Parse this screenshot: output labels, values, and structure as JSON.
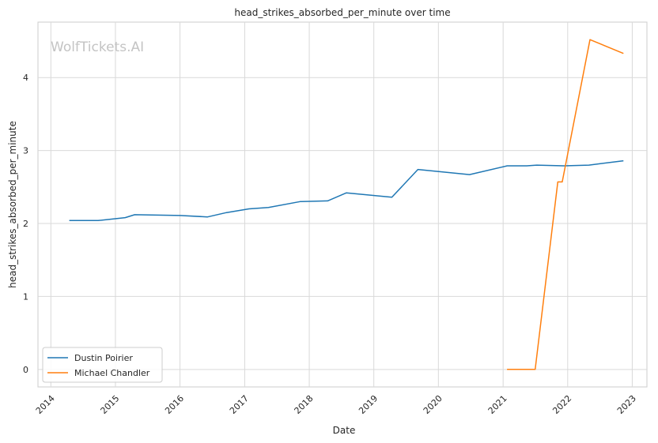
{
  "chart_data": {
    "type": "line",
    "title": "head_strikes_absorbed_per_minute over time",
    "xlabel": "Date",
    "ylabel": "head_strikes_absorbed_per_minute",
    "watermark": "WolfTickets.AI",
    "x_ticks": [
      "2014",
      "2015",
      "2016",
      "2017",
      "2018",
      "2019",
      "2020",
      "2021",
      "2022",
      "2023"
    ],
    "y_ticks": [
      0,
      1,
      2,
      3,
      4
    ],
    "xlim": [
      "2013-10-20",
      "2023-03-25"
    ],
    "ylim": [
      -0.24,
      4.76
    ],
    "grid": true,
    "legend_position": "lower-left",
    "series": [
      {
        "name": "Dustin Poirier",
        "color": "#1f77b4",
        "points": [
          {
            "x": "2014-04-15",
            "y": 2.04
          },
          {
            "x": "2014-09-25",
            "y": 2.04
          },
          {
            "x": "2015-02-25",
            "y": 2.08
          },
          {
            "x": "2015-04-20",
            "y": 2.12
          },
          {
            "x": "2016-01-01",
            "y": 2.11
          },
          {
            "x": "2016-06-05",
            "y": 2.09
          },
          {
            "x": "2016-09-20",
            "y": 2.15
          },
          {
            "x": "2017-01-25",
            "y": 2.2
          },
          {
            "x": "2017-05-15",
            "y": 2.22
          },
          {
            "x": "2017-11-10",
            "y": 2.3
          },
          {
            "x": "2018-04-15",
            "y": 2.31
          },
          {
            "x": "2018-07-30",
            "y": 2.42
          },
          {
            "x": "2019-04-13",
            "y": 2.36
          },
          {
            "x": "2019-09-07",
            "y": 2.74
          },
          {
            "x": "2020-06-25",
            "y": 2.67
          },
          {
            "x": "2021-01-24",
            "y": 2.79
          },
          {
            "x": "2021-05-15",
            "y": 2.79
          },
          {
            "x": "2021-07-10",
            "y": 2.8
          },
          {
            "x": "2021-12-11",
            "y": 2.79
          },
          {
            "x": "2022-05-01",
            "y": 2.8
          },
          {
            "x": "2022-11-12",
            "y": 2.86
          }
        ]
      },
      {
        "name": "Michael Chandler",
        "color": "#ff7f0e",
        "points": [
          {
            "x": "2021-01-23",
            "y": 0.0
          },
          {
            "x": "2021-07-01",
            "y": 0.0
          },
          {
            "x": "2021-11-06",
            "y": 2.57
          },
          {
            "x": "2021-12-01",
            "y": 2.57
          },
          {
            "x": "2022-05-07",
            "y": 4.52
          },
          {
            "x": "2022-11-12",
            "y": 4.33
          }
        ]
      }
    ]
  }
}
